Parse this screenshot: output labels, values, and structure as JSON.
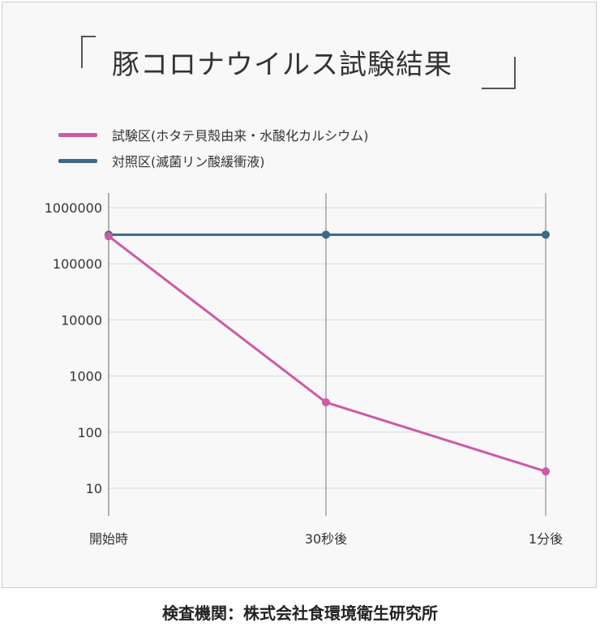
{
  "chart_data": {
    "type": "line",
    "title": "豚コロナウイルス試験結果",
    "x": [
      "開始時",
      "30秒後",
      "1分後"
    ],
    "yscale": "log",
    "ylim": [
      3,
      1000000
    ],
    "yticks": [
      "1000000",
      "100000",
      "10000",
      "1000",
      "100",
      "10"
    ],
    "ytick_values": [
      1000000,
      100000,
      10000,
      1000,
      100,
      10
    ],
    "grid": true,
    "legend_position": "top-left",
    "series": [
      {
        "name": "試験区(ホタテ貝殻由来・水酸化カルシウム)",
        "color": "#cc5aa6",
        "values": [
          310000,
          340,
          20
        ]
      },
      {
        "name": "対照区(滅菌リン酸緩衝液)",
        "color": "#3a6a87",
        "values": [
          330000,
          330000,
          330000
        ]
      }
    ]
  },
  "footer": {
    "text": "検査機関：株式会社食環境衛生研究所"
  }
}
